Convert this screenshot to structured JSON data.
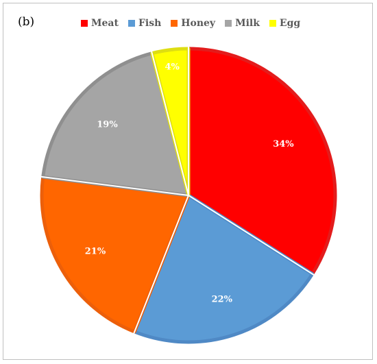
{
  "panel_label": "(b)",
  "chart_data": {
    "type": "pie",
    "title": "",
    "categories": [
      "Meat",
      "Fish",
      "Honey",
      "Milk",
      "Egg"
    ],
    "values": [
      34,
      22,
      21,
      19,
      4
    ],
    "labels": [
      "34%",
      "22%",
      "21%",
      "19%",
      "4%"
    ],
    "colors": [
      "#ff0000",
      "#5b9bd5",
      "#ff6600",
      "#a5a5a5",
      "#ffff00"
    ],
    "border_colors": [
      "#e31c1c",
      "#4f89c5",
      "#ec5f0a",
      "#8f8f8f",
      "#dede12"
    ],
    "start_angle_deg": 0,
    "direction": "clockwise",
    "legend_position": "top"
  }
}
